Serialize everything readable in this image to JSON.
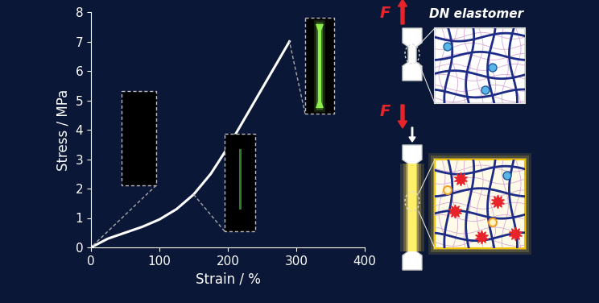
{
  "chart_data": {
    "type": "line",
    "x": [
      0,
      25,
      50,
      75,
      100,
      125,
      150,
      175,
      200,
      225,
      250,
      275,
      290
    ],
    "values": [
      0,
      0.3,
      0.5,
      0.7,
      0.95,
      1.3,
      1.8,
      2.5,
      3.4,
      4.4,
      5.4,
      6.4,
      7.0
    ],
    "color": "#ffffff",
    "xlabel": "Strain / %",
    "ylabel": "Stress / MPa",
    "xlim": [
      0,
      400
    ],
    "xticks": [
      0,
      100,
      200,
      300,
      400
    ],
    "ylim": [
      0,
      8
    ],
    "yticks": [
      0,
      1,
      2,
      3,
      4,
      5,
      6,
      7,
      8
    ],
    "annotations": [
      "F",
      "DN elastomer",
      "F"
    ]
  }
}
